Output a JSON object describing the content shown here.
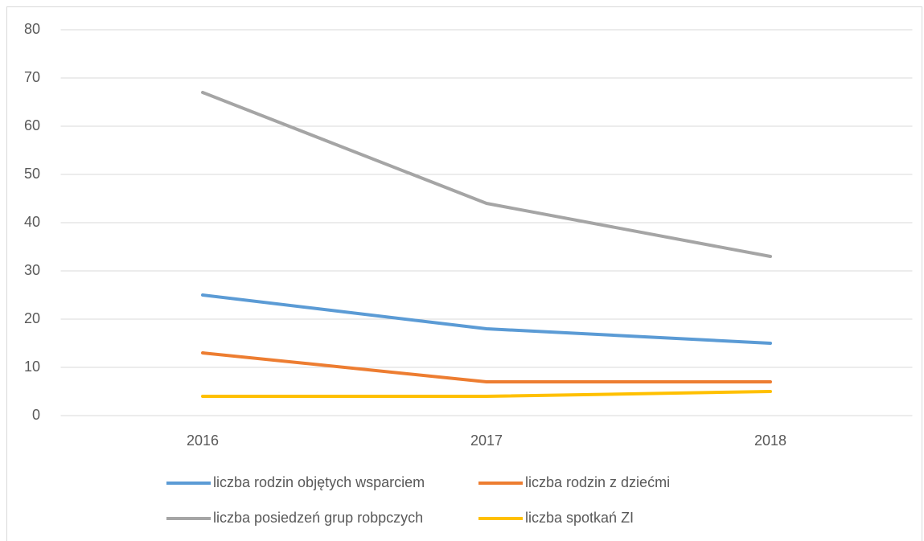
{
  "chart_data": {
    "type": "line",
    "categories": [
      "2016",
      "2017",
      "2018"
    ],
    "series": [
      {
        "name": "liczba rodzin objętych wsparciem",
        "color": "#5b9bd5",
        "values": [
          25,
          18,
          15
        ]
      },
      {
        "name": "liczba rodzin z dziećmi",
        "color": "#ed7d31",
        "values": [
          13,
          7,
          7
        ]
      },
      {
        "name": "liczba posiedzeń grup robpczych",
        "color": "#a5a5a5",
        "values": [
          67,
          44,
          33
        ]
      },
      {
        "name": "liczba spotkań ZI",
        "color": "#ffc000",
        "values": [
          4,
          4,
          5
        ]
      }
    ],
    "ylim": [
      0,
      80
    ],
    "yticks": [
      0,
      10,
      20,
      30,
      40,
      50,
      60,
      70,
      80
    ],
    "grid": true,
    "legend": "bottom"
  }
}
